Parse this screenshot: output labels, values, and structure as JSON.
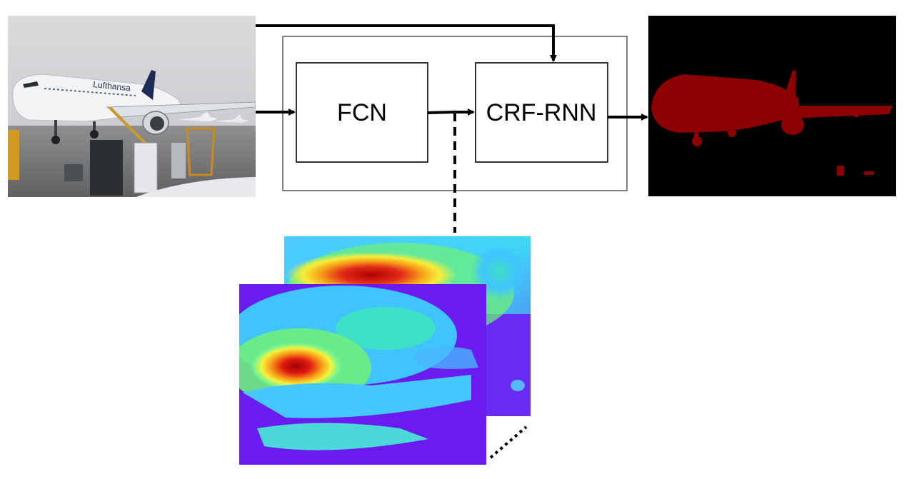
{
  "blocks": {
    "fcn_label": "FCN",
    "crf_label": "CRF-RNN"
  },
  "colors": {
    "segmentation_background": "#000000",
    "segmentation_mask": "#8b0000",
    "heatmap_low": "#6a1cf0",
    "heatmap_high": "#b00000"
  },
  "images": {
    "input": "input-airplane-photo",
    "output": "segmentation-mask",
    "heatmaps": "fcn-score-heatmaps"
  }
}
